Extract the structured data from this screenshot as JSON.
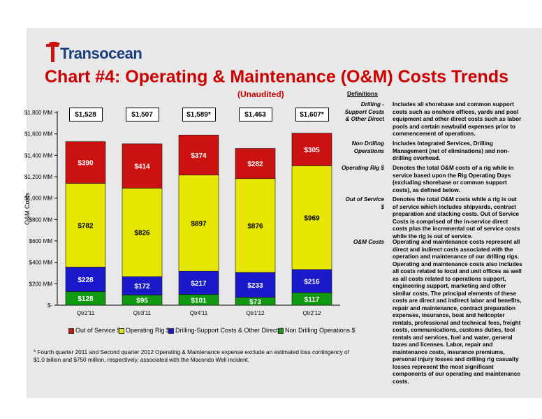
{
  "header": {
    "logo_text": "Transocean",
    "title": "Chart #4: Operating & Maintenance (O&M) Costs Trends",
    "subtitle": "(Unaudited)"
  },
  "definitions": {
    "heading": "Definitions",
    "items": [
      {
        "term": "Drilling - Support Costs & Other Direct",
        "text": "Includes all shorebase and common support costs such as onshore offices, yards and pool equipment and other direct costs such as labor pools and certain newbuild expenses prior to commencement of operations."
      },
      {
        "term": "Non Drilling Operations",
        "text": "Includes Integrated Services, Drilling Management (net of eliminations) and non-drilling overhead."
      },
      {
        "term": "Operating Rig $",
        "text": "Denotes the total O&M costs of a rig while in service based upon the Rig Operating Days (excluding shorebase or common support costs), as defined below."
      },
      {
        "term": "Out of Service $",
        "text": "Denotes the total O&M costs while a rig is out of service which includes shipyards, contract preparation and stacking costs. Out of Service Costs is comprised of the in-service direct costs plus the incremental out of service costs while the rig is out of service."
      },
      {
        "term": "O&M Costs",
        "text": "Operating and maintenance costs represent all direct and indirect costs associated with the operation and maintenance of our drilling rigs. Operating and maintenance costs also includes all costs related to local and unit offices as well as all costs related to operations support, engineering support, marketing and other similar costs. The principal elements of these costs are direct and indirect labor and benefits, repair and maintenance, contract preparation expenses, insurance, boat and helicopter rentals, professional and technical fees, freight costs, communications, customs duties, tool rentals and services, fuel and water, general taxes and licenses. Labor, repair and maintenance costs, insurance premiums, personal injury losses and drilling rig casualty losses represent the most significant components of our operating and maintenance costs."
      }
    ]
  },
  "footnote": "* Fourth quarter 2011 and Second quarter 2012 Operating & Maintenance expense exclude an estimated loss contingency of $1.0 billion and $750 million, respectively, associated with the Macondo Well incident.",
  "chart_data": {
    "type": "bar",
    "stacked": true,
    "categories": [
      "Qtr2'11",
      "Qtr3'11",
      "Qtr4'11",
      "Qtr1'12",
      "Qtr2'12"
    ],
    "ylabel": "O&M Costs",
    "ylim": [
      0,
      1800
    ],
    "yticks": [
      0,
      200,
      400,
      600,
      800,
      1000,
      1200,
      1400,
      1600,
      1800
    ],
    "ytick_labels": [
      "$-",
      "$200 MM",
      "$400 MM",
      "$600 MM",
      "$800 MM",
      "$1,000 MM",
      "$1,200 MM",
      "$1,400 MM",
      "$1,600 MM",
      "$1,800 MM"
    ],
    "series": [
      {
        "name": "Non Drilling Operations $",
        "color": "#119911",
        "values": [
          128,
          95,
          101,
          73,
          117
        ],
        "labels": [
          "$128",
          "$95",
          "$101",
          "$73",
          "$117"
        ]
      },
      {
        "name": "Drilling-Support Costs & Other Direct $",
        "color": "#1a1acc",
        "values": [
          228,
          172,
          217,
          233,
          216
        ],
        "labels": [
          "$228",
          "$172",
          "$217",
          "$233",
          "$216"
        ]
      },
      {
        "name": "Operating Rig $",
        "color": "#e6e600",
        "values": [
          782,
          826,
          897,
          876,
          969
        ],
        "labels": [
          "$782",
          "$826",
          "$897",
          "$876",
          "$969"
        ]
      },
      {
        "name": "Out of Service $",
        "color": "#cc1111",
        "values": [
          390,
          414,
          374,
          282,
          305
        ],
        "labels": [
          "$390",
          "$414",
          "$374",
          "$282",
          "$305"
        ]
      }
    ],
    "totals": [
      "$1,528",
      "$1,507",
      "$1,589*",
      "$1,463",
      "$1,607*"
    ],
    "legend": [
      {
        "label": "Out of Service $",
        "color": "#cc1111"
      },
      {
        "label": "Operating Rig $",
        "color": "#e6e600"
      },
      {
        "label": "Drilling-Support Costs & Other Direct $",
        "color": "#1a1acc"
      },
      {
        "label": "Non Drilling Operations $",
        "color": "#119911"
      }
    ],
    "grid": false,
    "legend_position": "bottom"
  }
}
